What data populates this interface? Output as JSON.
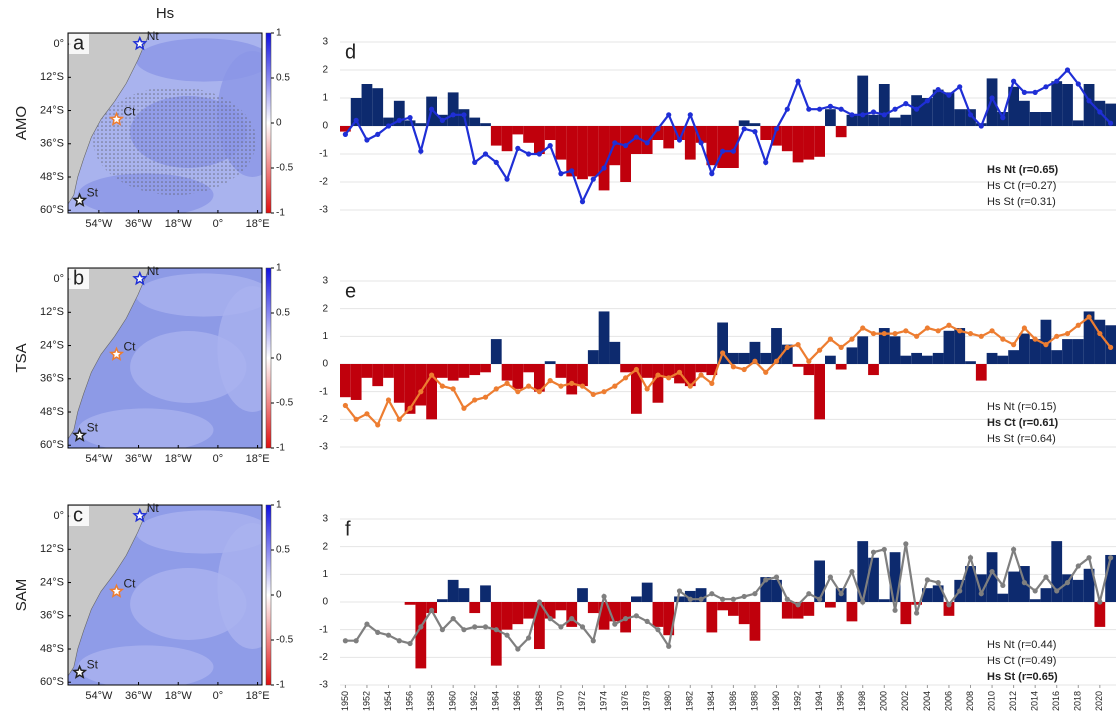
{
  "chart_data": [
    {
      "type": "map",
      "panel": "a",
      "title": "Hs",
      "row_label": "AMO",
      "ocean_color": "#a9b3ee",
      "patch_color": "#8b96e6",
      "stippling": true,
      "xlim": [
        -68,
        20
      ],
      "ylim": [
        4,
        -61
      ],
      "xticks": [
        {
          "value": -54,
          "label": "54°W"
        },
        {
          "value": -36,
          "label": "36°W"
        },
        {
          "value": -18,
          "label": "18°W"
        },
        {
          "value": 0,
          "label": "0°"
        },
        {
          "value": 18,
          "label": "18°E"
        }
      ],
      "yticks": [
        {
          "value": 0,
          "label": "0°"
        },
        {
          "value": -12,
          "label": "12°S"
        },
        {
          "value": -24,
          "label": "24°S"
        },
        {
          "value": -36,
          "label": "36°S"
        },
        {
          "value": -48,
          "label": "48°S"
        },
        {
          "value": -60,
          "label": "60°S"
        }
      ],
      "clim": [
        -1,
        1
      ],
      "cticks": [
        1,
        0.5,
        0,
        -0.5,
        -1
      ],
      "stations": [
        {
          "label": "Nt",
          "color": "#1f2fd6"
        },
        {
          "label": "Ct",
          "color": "#ed7d31"
        },
        {
          "label": "St",
          "color": "#222222"
        }
      ]
    },
    {
      "type": "map",
      "panel": "b",
      "row_label": "TSA",
      "ocean_color": "#8d9ae6",
      "patch_color": "#a9b2ef",
      "stippling": false,
      "xlim": [
        -68,
        20
      ],
      "ylim": [
        4,
        -61
      ],
      "xticks": [
        {
          "value": -54,
          "label": "54°W"
        },
        {
          "value": -36,
          "label": "36°W"
        },
        {
          "value": -18,
          "label": "18°W"
        },
        {
          "value": 0,
          "label": "0°"
        },
        {
          "value": 18,
          "label": "18°E"
        }
      ],
      "yticks": [
        {
          "value": 0,
          "label": "0°"
        },
        {
          "value": -12,
          "label": "12°S"
        },
        {
          "value": -24,
          "label": "24°S"
        },
        {
          "value": -36,
          "label": "36°S"
        },
        {
          "value": -48,
          "label": "48°S"
        },
        {
          "value": -60,
          "label": "60°S"
        }
      ],
      "clim": [
        -1,
        1
      ],
      "cticks": [
        1,
        0.5,
        0,
        -0.5,
        -1
      ],
      "stations": [
        {
          "label": "Nt",
          "color": "#1f2fd6"
        },
        {
          "label": "Ct",
          "color": "#ed7d31"
        },
        {
          "label": "St",
          "color": "#222222"
        }
      ]
    },
    {
      "type": "map",
      "panel": "c",
      "row_label": "SAM",
      "ocean_color": "#8f9ce8",
      "patch_color": "#aab3ef",
      "stippling": false,
      "xlim": [
        -68,
        20
      ],
      "ylim": [
        4,
        -61
      ],
      "xticks": [
        {
          "value": -54,
          "label": "54°W"
        },
        {
          "value": -36,
          "label": "36°W"
        },
        {
          "value": -18,
          "label": "18°W"
        },
        {
          "value": 0,
          "label": "0°"
        },
        {
          "value": 18,
          "label": "18°E"
        }
      ],
      "yticks": [
        {
          "value": 0,
          "label": "0°"
        },
        {
          "value": -12,
          "label": "12°S"
        },
        {
          "value": -24,
          "label": "24°S"
        },
        {
          "value": -36,
          "label": "36°S"
        },
        {
          "value": -48,
          "label": "48°S"
        },
        {
          "value": -60,
          "label": "60°S"
        }
      ],
      "clim": [
        -1,
        1
      ],
      "cticks": [
        1,
        0.5,
        0,
        -0.5,
        -1
      ],
      "stations": [
        {
          "label": "Nt",
          "color": "#1f2fd6"
        },
        {
          "label": "Ct",
          "color": "#ed7d31"
        },
        {
          "label": "St",
          "color": "#222222"
        }
      ]
    },
    {
      "type": "bar",
      "panel": "d",
      "ylim": [
        -3,
        3
      ],
      "yticks": [
        -3,
        -2,
        -1,
        0,
        1,
        2,
        3
      ],
      "xlim": [
        1949.5,
        2021.5
      ],
      "grid": true,
      "x": [
        1950,
        1951,
        1952,
        1953,
        1954,
        1955,
        1956,
        1957,
        1958,
        1959,
        1960,
        1961,
        1962,
        1963,
        1964,
        1965,
        1966,
        1967,
        1968,
        1969,
        1970,
        1971,
        1972,
        1973,
        1974,
        1975,
        1976,
        1977,
        1978,
        1979,
        1980,
        1981,
        1982,
        1983,
        1984,
        1985,
        1986,
        1987,
        1988,
        1989,
        1990,
        1991,
        1992,
        1993,
        1994,
        1995,
        1996,
        1997,
        1998,
        1999,
        2000,
        2001,
        2002,
        2003,
        2004,
        2005,
        2006,
        2007,
        2008,
        2009,
        2010,
        2011,
        2012,
        2013,
        2014,
        2015,
        2016,
        2017,
        2018,
        2019,
        2020,
        2021
      ],
      "series": [
        {
          "kind": "bar",
          "color": "#0d2a6e",
          "negative_color": "#c0000c",
          "values": [
            -0.2,
            1.0,
            1.5,
            1.35,
            0.3,
            0.9,
            0.2,
            0.1,
            1.05,
            0.4,
            1.2,
            0.6,
            0.3,
            0.1,
            -0.7,
            -0.9,
            -0.3,
            -0.6,
            -1.0,
            -0.5,
            -1.2,
            -1.8,
            -1.9,
            -1.8,
            -2.3,
            -1.4,
            -2.0,
            -1.0,
            -1.0,
            -0.5,
            -0.8,
            -0.5,
            -1.2,
            -0.6,
            -1.4,
            -1.5,
            -1.5,
            0.2,
            0.1,
            -0.5,
            -0.7,
            -0.9,
            -1.3,
            -1.2,
            -1.1,
            0.6,
            -0.4,
            0.4,
            1.8,
            0.4,
            1.5,
            0.3,
            0.4,
            1.1,
            1.0,
            1.3,
            1.2,
            0.6,
            0.6,
            0.1,
            1.7,
            0.5,
            1.4,
            0.9,
            0.5,
            0.5,
            1.6,
            1.5,
            0.2,
            1.5,
            0.9,
            0.8
          ]
        },
        {
          "kind": "line",
          "color": "#1f2fd6",
          "values": [
            -0.3,
            0.2,
            -0.5,
            -0.3,
            0.0,
            0.2,
            0.3,
            -0.9,
            0.6,
            0.2,
            0.4,
            0.4,
            -1.3,
            -1.0,
            -1.3,
            -1.9,
            -0.8,
            -1.0,
            -1.0,
            -0.7,
            -1.7,
            -1.6,
            -2.7,
            -1.9,
            -1.5,
            -0.6,
            -0.7,
            -0.4,
            -0.6,
            -0.1,
            0.4,
            -0.5,
            0.4,
            -0.6,
            -1.7,
            -0.9,
            -0.9,
            -0.1,
            -0.2,
            -1.3,
            -0.1,
            0.6,
            1.6,
            0.6,
            0.6,
            0.7,
            0.6,
            0.4,
            0.4,
            0.5,
            0.4,
            0.6,
            0.8,
            0.6,
            0.9,
            1.3,
            1.1,
            1.4,
            0.4,
            0.0,
            1.0,
            0.3,
            1.6,
            1.2,
            1.2,
            1.4,
            1.6,
            2.0,
            1.5,
            0.9,
            0.5,
            0.1
          ]
        }
      ],
      "legend": [
        {
          "text": "Hs Nt (r=0.65)",
          "color": "#1f2fd6",
          "bold": true
        },
        {
          "text": "Hs Ct (r=0.27)",
          "color": "#222222",
          "bold": false
        },
        {
          "text": "Hs St (r=0.31)",
          "color": "#222222",
          "bold": false
        }
      ]
    },
    {
      "type": "bar",
      "panel": "e",
      "ylim": [
        -3,
        3
      ],
      "yticks": [
        -3,
        -2,
        -1,
        0,
        1,
        2,
        3
      ],
      "xlim": [
        1949.5,
        2021.5
      ],
      "grid": true,
      "x": [
        1950,
        1951,
        1952,
        1953,
        1954,
        1955,
        1956,
        1957,
        1958,
        1959,
        1960,
        1961,
        1962,
        1963,
        1964,
        1965,
        1966,
        1967,
        1968,
        1969,
        1970,
        1971,
        1972,
        1973,
        1974,
        1975,
        1976,
        1977,
        1978,
        1979,
        1980,
        1981,
        1982,
        1983,
        1984,
        1985,
        1986,
        1987,
        1988,
        1989,
        1990,
        1991,
        1992,
        1993,
        1994,
        1995,
        1996,
        1997,
        1998,
        1999,
        2000,
        2001,
        2002,
        2003,
        2004,
        2005,
        2006,
        2007,
        2008,
        2009,
        2010,
        2011,
        2012,
        2013,
        2014,
        2015,
        2016,
        2017,
        2018,
        2019,
        2020,
        2021
      ],
      "series": [
        {
          "kind": "bar",
          "color": "#0d2a6e",
          "negative_color": "#c0000c",
          "values": [
            -1.2,
            -1.3,
            -0.5,
            -0.8,
            -0.5,
            -1.4,
            -1.8,
            -1.5,
            -2.0,
            -0.5,
            -0.6,
            -0.5,
            -0.4,
            -0.3,
            0.9,
            -0.6,
            -0.9,
            -0.3,
            -1.0,
            0.1,
            -0.5,
            -1.1,
            -0.8,
            0.5,
            1.9,
            0.8,
            -0.3,
            -1.8,
            -0.5,
            -1.4,
            -0.5,
            -0.7,
            -0.8,
            -0.3,
            -0.4,
            1.5,
            0.4,
            0.4,
            0.8,
            0.4,
            1.3,
            0.7,
            -0.1,
            -0.4,
            -2.0,
            0.3,
            -0.2,
            0.6,
            1.0,
            -0.4,
            1.3,
            1.0,
            0.3,
            0.4,
            0.3,
            0.4,
            1.2,
            1.3,
            0.1,
            -0.6,
            0.4,
            0.3,
            0.5,
            1.1,
            0.9,
            1.6,
            0.5,
            0.9,
            0.9,
            1.9,
            1.6,
            1.4
          ]
        },
        {
          "kind": "line",
          "color": "#ed7d31",
          "values": [
            -1.5,
            -2.0,
            -1.8,
            -2.2,
            -1.3,
            -2.0,
            -1.6,
            -1.0,
            -0.4,
            -0.8,
            -0.9,
            -1.6,
            -1.3,
            -1.2,
            -0.9,
            -0.7,
            -1.0,
            -0.8,
            -1.0,
            -0.6,
            -0.8,
            -0.7,
            -0.8,
            -1.1,
            -1.0,
            -0.8,
            -0.5,
            -0.2,
            -0.9,
            -0.4,
            -0.5,
            -0.3,
            -0.8,
            -0.4,
            -0.7,
            0.4,
            -0.1,
            -0.2,
            0.1,
            -0.3,
            0.1,
            0.6,
            0.7,
            0.1,
            0.5,
            0.9,
            0.6,
            0.9,
            1.3,
            1.1,
            1.1,
            1.1,
            1.2,
            1.0,
            1.3,
            1.2,
            1.4,
            1.2,
            1.1,
            1.0,
            1.2,
            0.9,
            0.7,
            1.3,
            0.9,
            0.7,
            1.0,
            1.1,
            1.4,
            1.7,
            1.1,
            0.6
          ]
        }
      ],
      "legend": [
        {
          "text": "Hs Nt (r=0.15)",
          "color": "#222222",
          "bold": false
        },
        {
          "text": "Hs Ct (r=0.61)",
          "color": "#ed7d31",
          "bold": true
        },
        {
          "text": "Hs St (r=0.64)",
          "color": "#222222",
          "bold": false
        }
      ]
    },
    {
      "type": "bar",
      "panel": "f",
      "ylim": [
        -3,
        3
      ],
      "yticks": [
        -3,
        -2,
        -1,
        0,
        1,
        2,
        3
      ],
      "xlim": [
        1949.5,
        2021.5
      ],
      "grid": true,
      "x": [
        1950,
        1951,
        1952,
        1953,
        1954,
        1955,
        1956,
        1957,
        1958,
        1959,
        1960,
        1961,
        1962,
        1963,
        1964,
        1965,
        1966,
        1967,
        1968,
        1969,
        1970,
        1971,
        1972,
        1973,
        1974,
        1975,
        1976,
        1977,
        1978,
        1979,
        1980,
        1981,
        1982,
        1983,
        1984,
        1985,
        1986,
        1987,
        1988,
        1989,
        1990,
        1991,
        1992,
        1993,
        1994,
        1995,
        1996,
        1997,
        1998,
        1999,
        2000,
        2001,
        2002,
        2003,
        2004,
        2005,
        2006,
        2007,
        2008,
        2009,
        2010,
        2011,
        2012,
        2013,
        2014,
        2015,
        2016,
        2017,
        2018,
        2019,
        2020,
        2021
      ],
      "xticks": [
        1950,
        1952,
        1954,
        1956,
        1958,
        1960,
        1962,
        1964,
        1966,
        1968,
        1970,
        1972,
        1974,
        1976,
        1978,
        1980,
        1982,
        1984,
        1986,
        1988,
        1990,
        1992,
        1994,
        1996,
        1998,
        2000,
        2002,
        2004,
        2006,
        2008,
        2010,
        2012,
        2014,
        2016,
        2018,
        2020
      ],
      "series": [
        {
          "kind": "bar",
          "color": "#0d2a6e",
          "negative_color": "#c0000c",
          "values": [
            0,
            0,
            0,
            0,
            0,
            0,
            -0.1,
            -2.4,
            -0.4,
            0.1,
            0.8,
            0.5,
            -0.4,
            0.6,
            -2.3,
            -1.0,
            -0.8,
            -0.6,
            -1.7,
            -0.6,
            -0.3,
            -0.9,
            0.5,
            -0.4,
            -1.0,
            -0.7,
            -1.1,
            0.2,
            0.7,
            -0.9,
            -1.2,
            0.2,
            0.4,
            0.5,
            -1.1,
            -0.3,
            -0.5,
            -0.8,
            -1.4,
            0.9,
            0.8,
            -0.6,
            -0.6,
            -0.5,
            1.5,
            -0.2,
            0.5,
            -0.7,
            2.2,
            1.6,
            0.1,
            1.8,
            -0.8,
            -0.1,
            0.5,
            0.6,
            -0.5,
            0.8,
            1.3,
            1.0,
            1.8,
            0.3,
            1.1,
            1.3,
            0.1,
            0.5,
            2.2,
            1.0,
            0.8,
            1.2,
            -0.9,
            1.7
          ]
        },
        {
          "kind": "line",
          "color": "#7f7f7f",
          "values": [
            -1.4,
            -1.4,
            -0.8,
            -1.1,
            -1.2,
            -1.4,
            -1.5,
            -0.9,
            -0.3,
            -1.0,
            -0.6,
            -1.0,
            -0.9,
            -0.9,
            -1.0,
            -1.2,
            -1.7,
            -1.3,
            0.0,
            -0.6,
            -0.9,
            -0.6,
            -0.9,
            -1.4,
            0.2,
            -0.8,
            -0.6,
            -0.5,
            -0.7,
            -1.0,
            -1.6,
            0.4,
            0.1,
            0.1,
            0.3,
            0.1,
            0.1,
            0.2,
            0.3,
            0.8,
            0.9,
            0.1,
            -0.1,
            0.3,
            0.1,
            0.9,
            0.3,
            1.1,
            0.0,
            1.8,
            1.9,
            -0.3,
            2.1,
            -0.4,
            0.8,
            0.7,
            -0.1,
            0.4,
            1.6,
            0.3,
            1.1,
            0.6,
            1.9,
            0.7,
            0.4,
            0.9,
            0.4,
            0.7,
            1.3,
            1.6,
            0.0,
            1.6
          ]
        }
      ],
      "legend": [
        {
          "text": "Hs Nt (r=0.44)",
          "color": "#222222",
          "bold": false
        },
        {
          "text": "Hs Ct (r=0.49)",
          "color": "#222222",
          "bold": false
        },
        {
          "text": "Hs St (r=0.65)",
          "color": "#7f7f7f",
          "bold": true
        }
      ]
    }
  ]
}
